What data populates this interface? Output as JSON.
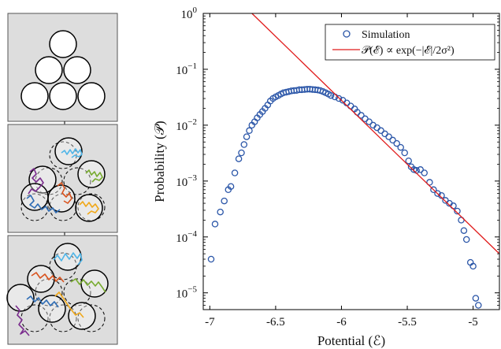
{
  "colors": {
    "panel_bg": "#dddddd",
    "panel_border": "#555555",
    "disk_fill": "#ffffff",
    "trajectory_colors": [
      "#7b2d8e",
      "#2f6db5",
      "#d9531e",
      "#78ab30",
      "#f0a81a",
      "#4fb5e8"
    ],
    "sim_marker": "#2b56a8",
    "fit_line": "#e01b1b",
    "axis": "#000000"
  },
  "chart_data": {
    "type": "scatter",
    "title": "",
    "xlabel": "Potential (ℰ)",
    "ylabel": "Probability (𝒫)",
    "xlim": [
      -7.05,
      -4.8
    ],
    "ylim": [
      -5.3,
      0
    ],
    "y_scale": "log",
    "x_ticks": [
      {
        "value": -7,
        "label": "-7"
      },
      {
        "value": -6.5,
        "label": "-6.5"
      },
      {
        "value": -6,
        "label": "-6"
      },
      {
        "value": -5.5,
        "label": "-5.5"
      },
      {
        "value": -5,
        "label": "-5"
      }
    ],
    "y_ticks": [
      {
        "exp": 0,
        "base": "10",
        "sup": "0"
      },
      {
        "exp": -1,
        "base": "10",
        "sup": "−1"
      },
      {
        "exp": -2,
        "base": "10",
        "sup": "−2"
      },
      {
        "exp": -3,
        "base": "10",
        "sup": "−3"
      },
      {
        "exp": -4,
        "base": "10",
        "sup": "−4"
      },
      {
        "exp": -5,
        "base": "10",
        "sup": "−5"
      }
    ],
    "grid": false,
    "legend_position": "top-right",
    "series": [
      {
        "name": "Simulation",
        "kind": "markers",
        "points": [
          {
            "x": -6.99,
            "y": 4e-05
          },
          {
            "x": -6.96,
            "y": 0.00017
          },
          {
            "x": -6.92,
            "y": 0.00028
          },
          {
            "x": -6.89,
            "y": 0.00044
          },
          {
            "x": -6.86,
            "y": 0.0007
          },
          {
            "x": -6.84,
            "y": 0.0008
          },
          {
            "x": -6.81,
            "y": 0.0014
          },
          {
            "x": -6.78,
            "y": 0.0025
          },
          {
            "x": -6.76,
            "y": 0.0032
          },
          {
            "x": -6.74,
            "y": 0.0045
          },
          {
            "x": -6.72,
            "y": 0.0062
          },
          {
            "x": -6.7,
            "y": 0.008
          },
          {
            "x": -6.68,
            "y": 0.01
          },
          {
            "x": -6.66,
            "y": 0.0115
          },
          {
            "x": -6.64,
            "y": 0.0135
          },
          {
            "x": -6.62,
            "y": 0.0155
          },
          {
            "x": -6.6,
            "y": 0.0175
          },
          {
            "x": -6.58,
            "y": 0.02
          },
          {
            "x": -6.56,
            "y": 0.023
          },
          {
            "x": -6.54,
            "y": 0.027
          },
          {
            "x": -6.52,
            "y": 0.03
          },
          {
            "x": -6.5,
            "y": 0.032
          },
          {
            "x": -6.48,
            "y": 0.034
          },
          {
            "x": -6.46,
            "y": 0.036
          },
          {
            "x": -6.44,
            "y": 0.038
          },
          {
            "x": -6.42,
            "y": 0.039
          },
          {
            "x": -6.4,
            "y": 0.04
          },
          {
            "x": -6.38,
            "y": 0.041
          },
          {
            "x": -6.36,
            "y": 0.0415
          },
          {
            "x": -6.34,
            "y": 0.042
          },
          {
            "x": -6.32,
            "y": 0.043
          },
          {
            "x": -6.3,
            "y": 0.043
          },
          {
            "x": -6.28,
            "y": 0.0435
          },
          {
            "x": -6.26,
            "y": 0.044
          },
          {
            "x": -6.24,
            "y": 0.044
          },
          {
            "x": -6.22,
            "y": 0.0435
          },
          {
            "x": -6.2,
            "y": 0.043
          },
          {
            "x": -6.18,
            "y": 0.0425
          },
          {
            "x": -6.16,
            "y": 0.0415
          },
          {
            "x": -6.14,
            "y": 0.04
          },
          {
            "x": -6.12,
            "y": 0.038
          },
          {
            "x": -6.1,
            "y": 0.036
          },
          {
            "x": -6.08,
            "y": 0.034
          },
          {
            "x": -6.05,
            "y": 0.032
          },
          {
            "x": -6.02,
            "y": 0.03
          },
          {
            "x": -5.99,
            "y": 0.028
          },
          {
            "x": -5.96,
            "y": 0.025
          },
          {
            "x": -5.93,
            "y": 0.022
          },
          {
            "x": -5.9,
            "y": 0.0195
          },
          {
            "x": -5.88,
            "y": 0.017
          },
          {
            "x": -5.85,
            "y": 0.015
          },
          {
            "x": -5.82,
            "y": 0.013
          },
          {
            "x": -5.79,
            "y": 0.0115
          },
          {
            "x": -5.76,
            "y": 0.01
          },
          {
            "x": -5.73,
            "y": 0.009
          },
          {
            "x": -5.7,
            "y": 0.008
          },
          {
            "x": -5.67,
            "y": 0.007
          },
          {
            "x": -5.64,
            "y": 0.0062
          },
          {
            "x": -5.61,
            "y": 0.0054
          },
          {
            "x": -5.58,
            "y": 0.0047
          },
          {
            "x": -5.55,
            "y": 0.004
          },
          {
            "x": -5.52,
            "y": 0.0032
          },
          {
            "x": -5.49,
            "y": 0.0023
          },
          {
            "x": -5.47,
            "y": 0.0018
          },
          {
            "x": -5.45,
            "y": 0.0016
          },
          {
            "x": -5.43,
            "y": 0.00155
          },
          {
            "x": -5.4,
            "y": 0.0016
          },
          {
            "x": -5.37,
            "y": 0.0014
          },
          {
            "x": -5.33,
            "y": 0.00095
          },
          {
            "x": -5.3,
            "y": 0.0007
          },
          {
            "x": -5.27,
            "y": 0.0006
          },
          {
            "x": -5.24,
            "y": 0.00055
          },
          {
            "x": -5.21,
            "y": 0.00045
          },
          {
            "x": -5.18,
            "y": 0.0004
          },
          {
            "x": -5.15,
            "y": 0.00036
          },
          {
            "x": -5.12,
            "y": 0.00029
          },
          {
            "x": -5.09,
            "y": 0.0002
          },
          {
            "x": -5.07,
            "y": 0.00013
          },
          {
            "x": -5.05,
            "y": 9e-05
          },
          {
            "x": -5.02,
            "y": 3.5e-05
          },
          {
            "x": -5.0,
            "y": 3e-05
          },
          {
            "x": -4.98,
            "y": 8e-06
          },
          {
            "x": -4.96,
            "y": 6e-06
          }
        ]
      },
      {
        "name": "𝒫(ℰ) ∝ exp(−|ℰ|/2σ²)",
        "kind": "line",
        "points": [
          {
            "x": -6.68,
            "y": 1.0
          },
          {
            "x": -4.8,
            "y": 5e-05
          }
        ]
      }
    ]
  }
}
